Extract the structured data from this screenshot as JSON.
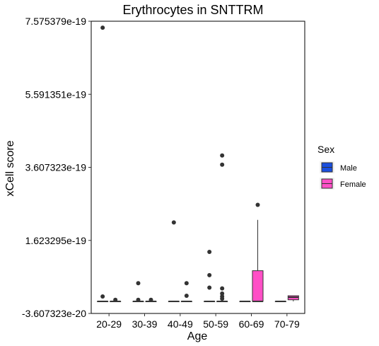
{
  "chart_data": {
    "type": "boxplot",
    "title": "Erythrocytes in SNTTRM",
    "xlabel": "Age",
    "ylabel": "xCell score",
    "ylim": [
      -3.607323e-20,
      7.575379e-19
    ],
    "yticks": [
      -3.607323e-20,
      1.623295e-19,
      3.607323e-19,
      5.591351e-19,
      7.575379e-19
    ],
    "ytick_labels": [
      "-3.607323e-20",
      "1.623295e-19",
      "3.607323e-19",
      "5.591351e-19",
      "7.575379e-19"
    ],
    "categories": [
      "20-29",
      "30-39",
      "40-49",
      "50-59",
      "60-69",
      "70-79"
    ],
    "grid": false,
    "legend": {
      "title": "Sex",
      "placement": "right",
      "entries": [
        {
          "name": "Male",
          "color": "#1A4FE0"
        },
        {
          "name": "Female",
          "color": "#FF4FC6"
        }
      ]
    },
    "series": [
      {
        "name": "Male",
        "color": "#1A4FE0",
        "boxes": [
          {
            "category": "20-29",
            "q1": -3.3e-21,
            "median": -3.3e-21,
            "q3": -3.3e-21,
            "whisker_low": -3.3e-21,
            "whisker_high": -3.3e-21,
            "outliers": [
              7.4e-19,
              1e-20
            ]
          },
          {
            "category": "30-39",
            "q1": -3.3e-21,
            "median": -3.3e-21,
            "q3": -3.3e-21,
            "whisker_low": -3.3e-21,
            "whisker_high": -3.3e-21,
            "outliers": [
              4.6e-20,
              1e-21
            ]
          },
          {
            "category": "40-49",
            "q1": -3.3e-21,
            "median": -3.3e-21,
            "q3": -3.3e-21,
            "whisker_low": -3.3e-21,
            "whisker_high": -3.3e-21,
            "outliers": [
              2.11e-19
            ]
          },
          {
            "category": "50-59",
            "q1": -3.3e-21,
            "median": -3.3e-21,
            "q3": -3.3e-21,
            "whisker_low": -3.3e-21,
            "whisker_high": -3.3e-21,
            "outliers": [
              1.31e-19,
              6.8e-20,
              3.4e-20
            ]
          },
          {
            "category": "60-69",
            "q1": -3.3e-21,
            "median": -3.3e-21,
            "q3": -3.3e-21,
            "whisker_low": -3.3e-21,
            "whisker_high": -3.3e-21,
            "outliers": []
          },
          {
            "category": "70-79",
            "q1": -3.3e-21,
            "median": -3.3e-21,
            "q3": -3.3e-21,
            "whisker_low": -3.3e-21,
            "whisker_high": -3.3e-21,
            "outliers": []
          }
        ]
      },
      {
        "name": "Female",
        "color": "#FF4FC6",
        "boxes": [
          {
            "category": "20-29",
            "q1": -3.3e-21,
            "median": -3.3e-21,
            "q3": -3.3e-21,
            "whisker_low": -3.3e-21,
            "whisker_high": -3.3e-21,
            "outliers": [
              1e-21
            ]
          },
          {
            "category": "30-39",
            "q1": -3.3e-21,
            "median": -3.3e-21,
            "q3": -3.3e-21,
            "whisker_low": -3.3e-21,
            "whisker_high": -3.3e-21,
            "outliers": [
              1e-21
            ]
          },
          {
            "category": "40-49",
            "q1": -3.3e-21,
            "median": -3.3e-21,
            "q3": -3.3e-21,
            "whisker_low": -3.3e-21,
            "whisker_high": -3.3e-21,
            "outliers": [
              1.2e-20,
              4.6e-20
            ]
          },
          {
            "category": "50-59",
            "q1": -3.3e-21,
            "median": -3.3e-21,
            "q3": -3.3e-21,
            "whisker_low": -3.3e-21,
            "whisker_high": -3.3e-21,
            "outliers": [
              3.93e-19,
              3.68e-19,
              3.2e-20,
              1.8e-20,
              1e-20,
              4e-21
            ]
          },
          {
            "category": "60-69",
            "q1": -3.3e-21,
            "median": -3.3e-21,
            "q3": 8e-20,
            "whisker_low": -3.3e-21,
            "whisker_high": 2.18e-19,
            "outliers": [
              2.59e-19
            ]
          },
          {
            "category": "70-79",
            "q1": 1e-21,
            "median": 8e-21,
            "q3": 1.2e-20,
            "whisker_low": -3.3e-21,
            "whisker_high": 1.2e-20,
            "outliers": []
          }
        ]
      }
    ]
  }
}
